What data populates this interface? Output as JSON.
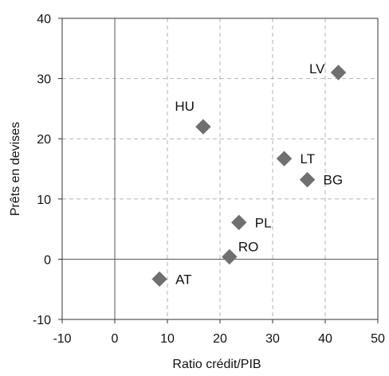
{
  "chart_data": {
    "type": "scatter",
    "title": "",
    "xlabel": "Ratio crédit/PIB",
    "ylabel": "Prêts en devises",
    "xlim": [
      -10,
      50
    ],
    "ylim": [
      -10,
      40
    ],
    "xticks": [
      "-10",
      "0",
      "10",
      "20",
      "30",
      "40",
      "50"
    ],
    "yticks": [
      "-10",
      "0",
      "10",
      "20",
      "30",
      "40"
    ],
    "grid": true,
    "legend": "none",
    "marker": "diamond",
    "marker_color": "#6f6f6f",
    "points": [
      {
        "label": "LV",
        "x": 42.5,
        "y": 31.0,
        "label_pos": "left"
      },
      {
        "label": "HU",
        "x": 16.8,
        "y": 22.0,
        "label_pos": "above-left"
      },
      {
        "label": "LT",
        "x": 32.2,
        "y": 16.7,
        "label_pos": "right"
      },
      {
        "label": "BG",
        "x": 36.6,
        "y": 13.2,
        "label_pos": "right"
      },
      {
        "label": "PL",
        "x": 23.6,
        "y": 6.1,
        "label_pos": "right"
      },
      {
        "label": "RO",
        "x": 21.8,
        "y": 0.4,
        "label_pos": "above-right"
      },
      {
        "label": "AT",
        "x": 8.5,
        "y": -3.3,
        "label_pos": "right"
      }
    ]
  }
}
